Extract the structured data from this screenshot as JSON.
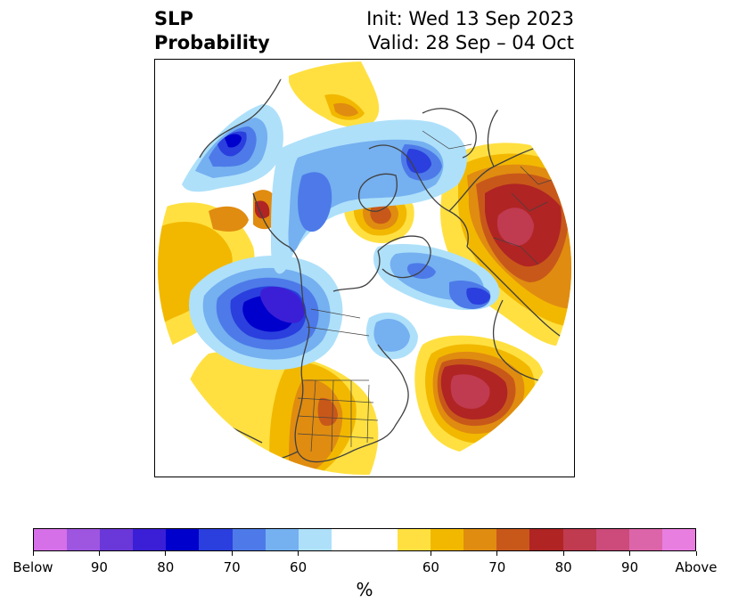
{
  "title": {
    "left_line1": "SLP",
    "left_line2": "Probability",
    "right_line1": "Init: Wed 13 Sep 2023",
    "right_line2": "Valid: 28 Sep – 04 Oct"
  },
  "colorbar": {
    "unit": "%",
    "colors": [
      "#d670e8",
      "#9e55e0",
      "#6a37d8",
      "#3b1fd6",
      "#0000cc",
      "#2a3fdd",
      "#4d7ae8",
      "#75b0f0",
      "#aee0fa",
      "#ffffff",
      "#ffe040",
      "#f2b800",
      "#e08c10",
      "#c8581a",
      "#b02424",
      "#c03a50",
      "#cc4b7a",
      "#dc64a8",
      "#e87ee0"
    ],
    "tick_labels": [
      "Below",
      "90",
      "80",
      "70",
      "60",
      "60",
      "70",
      "80",
      "90",
      "Above"
    ]
  },
  "map": {
    "projection": "north-polar-stereographic",
    "anomalies": [
      {
        "region": "Gulf of Alaska / North Pacific",
        "sign": "below",
        "peak": "80"
      },
      {
        "region": "Central Arctic",
        "sign": "below",
        "peak": "70"
      },
      {
        "region": "Greenland / Baffin Bay",
        "sign": "above",
        "peak": "70"
      },
      {
        "region": "Scandinavia / NW Russia",
        "sign": "above",
        "peak": "80"
      },
      {
        "region": "Western North Atlantic",
        "sign": "above",
        "peak": "80"
      },
      {
        "region": "Eastern Siberia",
        "sign": "below",
        "peak": "80"
      },
      {
        "region": "Central United States",
        "sign": "above",
        "peak": "70"
      }
    ]
  }
}
